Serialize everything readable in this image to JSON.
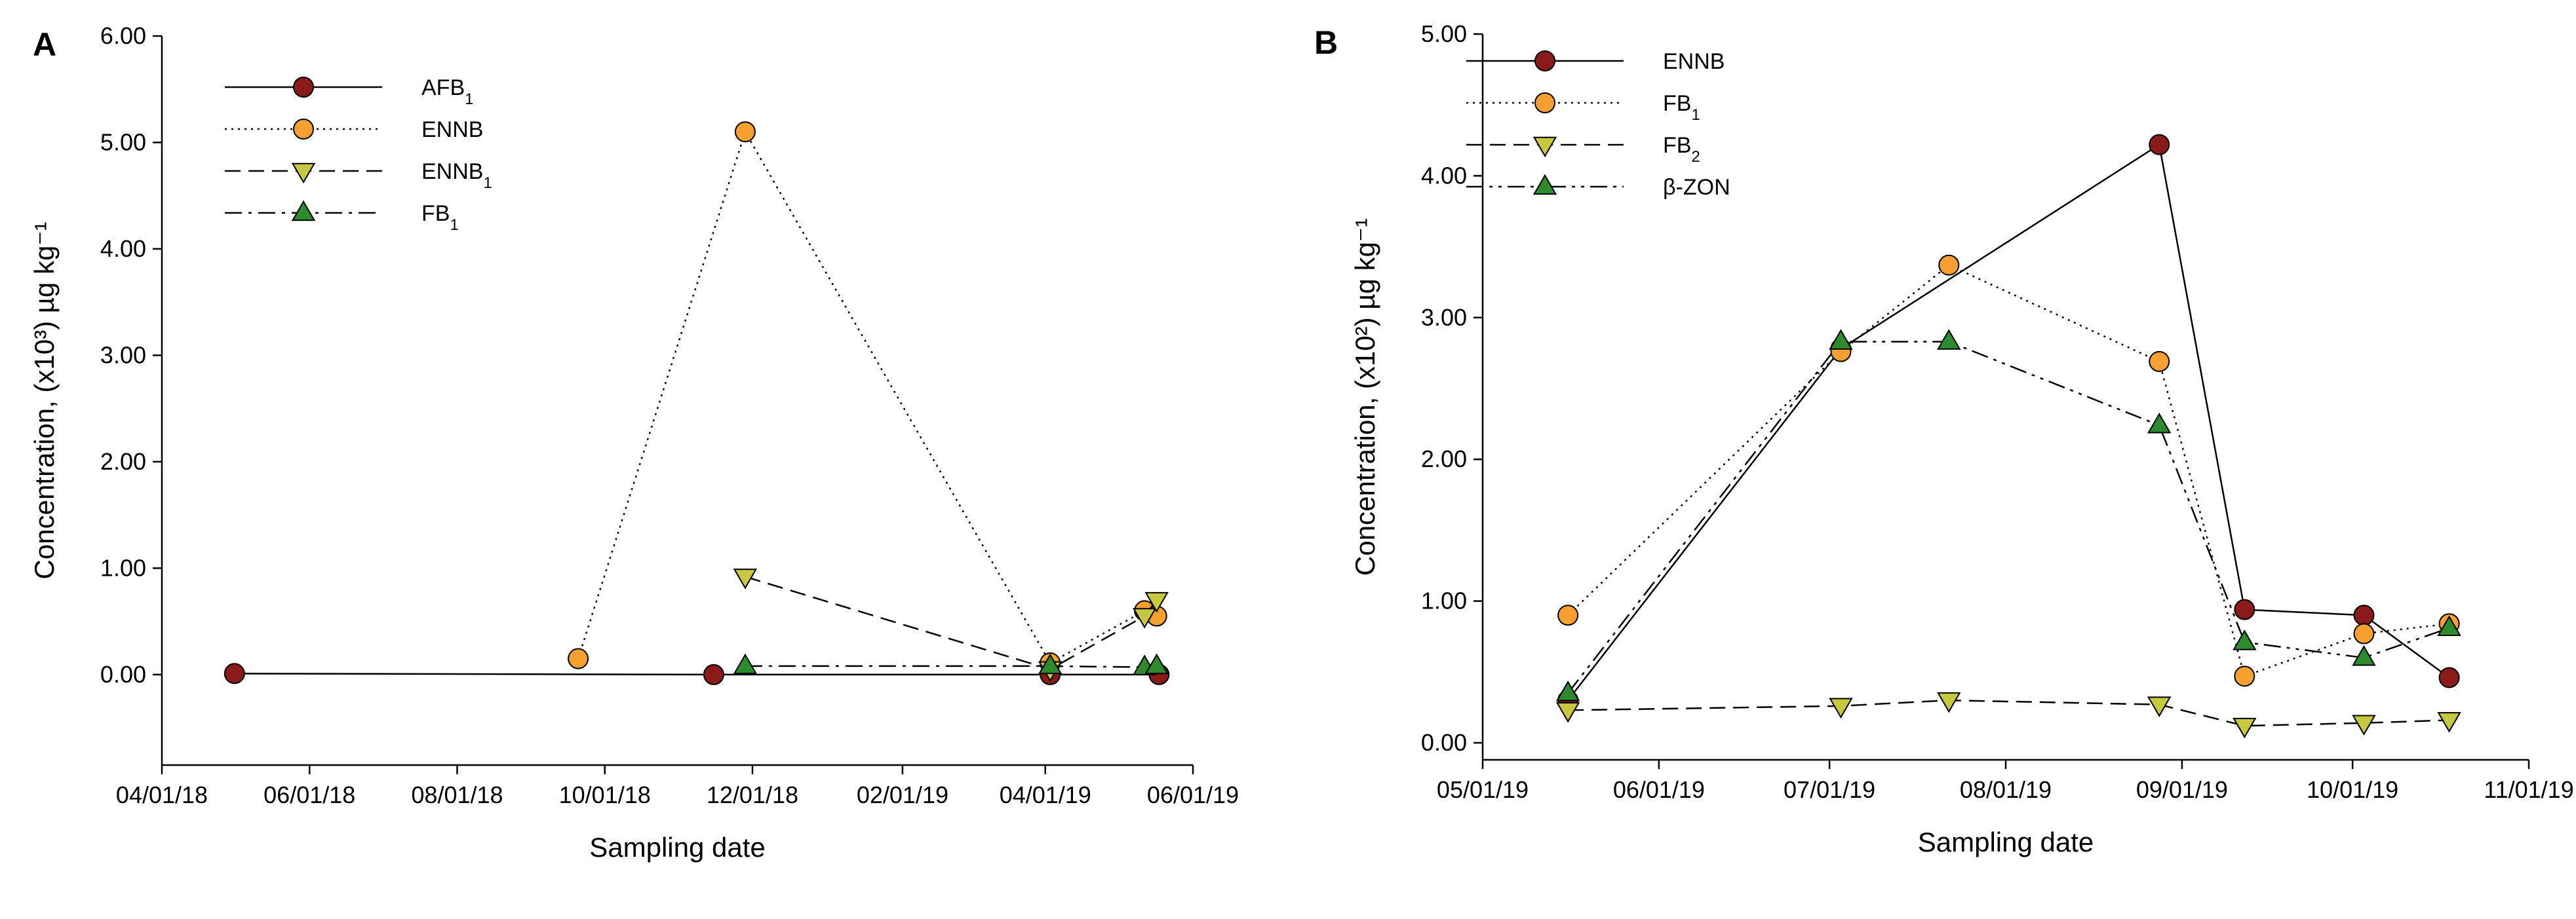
{
  "chart_data": [
    {
      "panel": "A",
      "type": "line",
      "xlabel": "Sampling date",
      "ylabel": "Concentration, (x10³) µg kg⁻¹",
      "ylim": [
        -0.85,
        6.0
      ],
      "yticks": [
        0,
        1,
        2,
        3,
        4,
        5,
        6
      ],
      "ytick_labels": [
        "0.00",
        "1.00",
        "2.00",
        "3.00",
        "4.00",
        "5.00",
        "6.00"
      ],
      "xlim": [
        "2018-04-01",
        "2019-06-01"
      ],
      "xticks": [
        "2018-04-01",
        "2018-06-01",
        "2018-08-01",
        "2018-10-01",
        "2018-12-01",
        "2019-02-01",
        "2019-04-01",
        "2019-06-01"
      ],
      "xtick_labels": [
        "04/01/18",
        "06/01/18",
        "08/01/18",
        "10/01/18",
        "12/01/18",
        "02/01/19",
        "04/01/19",
        "06/01/19"
      ],
      "legend_position": "top-left",
      "series": [
        {
          "name": "AFB",
          "sub": "1",
          "marker": "circle",
          "color": "#8b1a1a",
          "dash": "solid",
          "x": [
            "2018-05-01",
            "2018-11-15",
            "2019-04-03",
            "2019-05-18"
          ],
          "y": [
            0.01,
            0.0,
            0.0,
            0.0
          ]
        },
        {
          "name": "ENNB",
          "sub": "",
          "marker": "circle",
          "color": "#f5a030",
          "dash": "dotted",
          "x": [
            "2018-09-20",
            "2018-11-28",
            "2019-04-03",
            "2019-05-12",
            "2019-05-17"
          ],
          "y": [
            0.15,
            5.1,
            0.11,
            0.6,
            0.55
          ]
        },
        {
          "name": "ENNB",
          "sub": "1",
          "marker": "triangle-down",
          "color": "#c8c840",
          "dash": "dashed",
          "x": [
            "2018-11-28",
            "2019-04-03",
            "2019-05-12",
            "2019-05-17"
          ],
          "y": [
            0.92,
            0.05,
            0.55,
            0.7
          ]
        },
        {
          "name": "FB",
          "sub": "1",
          "marker": "triangle-up",
          "color": "#2d8a2d",
          "dash": "dashdot",
          "x": [
            "2018-11-28",
            "2019-04-03",
            "2019-05-12",
            "2019-05-17"
          ],
          "y": [
            0.08,
            0.08,
            0.07,
            0.08
          ]
        }
      ]
    },
    {
      "panel": "B",
      "type": "line",
      "xlabel": "Sampling date",
      "ylabel": "Concentration, (x10²) µg kg⁻¹",
      "ylim": [
        -0.12,
        5.0
      ],
      "yticks": [
        0,
        1,
        2,
        3,
        4,
        5
      ],
      "ytick_labels": [
        "0.00",
        "1.00",
        "2.00",
        "3.00",
        "4.00",
        "5.00"
      ],
      "xlim": [
        "2019-05-01",
        "2019-11-01"
      ],
      "xticks": [
        "2019-05-01",
        "2019-06-01",
        "2019-07-01",
        "2019-08-01",
        "2019-09-01",
        "2019-10-01",
        "2019-11-01"
      ],
      "xtick_labels": [
        "05/01/19",
        "06/01/19",
        "07/01/19",
        "08/01/19",
        "09/01/19",
        "10/01/19",
        "11/01/19"
      ],
      "legend_position": "top-left",
      "series": [
        {
          "name": "ENNB",
          "sub": "",
          "marker": "circle",
          "color": "#8b1a1a",
          "dash": "solid",
          "x": [
            "2019-05-16",
            "2019-07-03",
            "2019-08-28",
            "2019-09-12",
            "2019-10-03",
            "2019-10-18"
          ],
          "y": [
            0.3,
            2.78,
            4.22,
            0.94,
            0.9,
            0.46
          ]
        },
        {
          "name": "FB",
          "sub": "1",
          "marker": "circle",
          "color": "#f5a030",
          "dash": "dotted",
          "x": [
            "2019-05-16",
            "2019-07-03",
            "2019-07-22",
            "2019-08-28",
            "2019-09-12",
            "2019-10-03",
            "2019-10-18"
          ],
          "y": [
            0.9,
            2.76,
            3.37,
            2.69,
            0.47,
            0.77,
            0.84
          ]
        },
        {
          "name": "FB",
          "sub": "2",
          "marker": "triangle-down",
          "color": "#c8c840",
          "dash": "dashed",
          "x": [
            "2019-05-16",
            "2019-07-03",
            "2019-07-22",
            "2019-08-28",
            "2019-09-12",
            "2019-10-03",
            "2019-10-18"
          ],
          "y": [
            0.23,
            0.26,
            0.3,
            0.27,
            0.12,
            0.14,
            0.16
          ]
        },
        {
          "name": "β-ZON",
          "sub": "",
          "marker": "triangle-up",
          "color": "#2d8a2d",
          "dash": "dashdotdot",
          "x": [
            "2019-05-16",
            "2019-07-03",
            "2019-07-22",
            "2019-08-28",
            "2019-09-12",
            "2019-10-03",
            "2019-10-18"
          ],
          "y": [
            0.35,
            2.83,
            2.83,
            2.24,
            0.71,
            0.6,
            0.81
          ]
        }
      ]
    }
  ]
}
